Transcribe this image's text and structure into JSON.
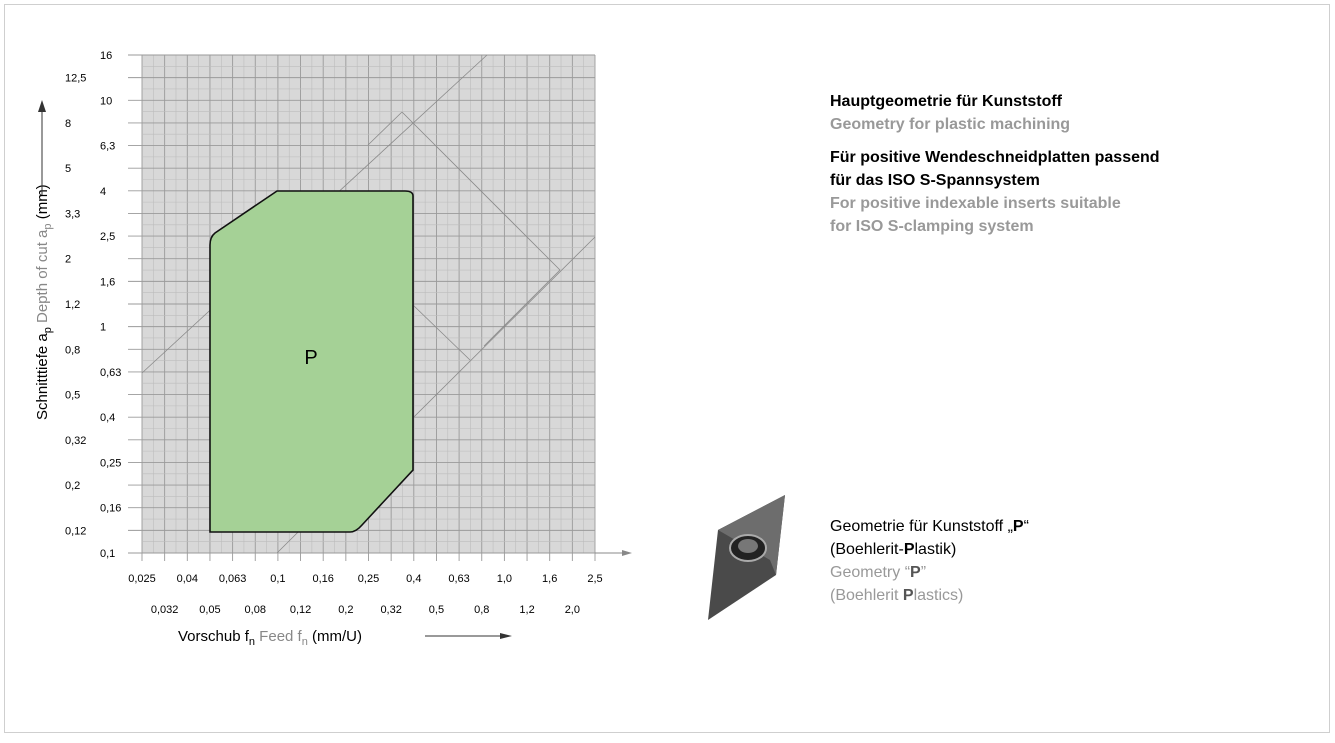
{
  "chart": {
    "y_axis_label": [
      "Schnitttiefe a",
      "p",
      " Depth of cut a",
      "p",
      " (mm)"
    ],
    "x_axis_label": [
      "Vorschub f",
      "n",
      " Feed f",
      "n",
      "  (mm/U)"
    ],
    "y_ticks": [
      "16",
      "12,5",
      "10",
      "8",
      "6,3",
      "5",
      "4",
      "3,3",
      "2,5",
      "2",
      "1,6",
      "1,2",
      "1",
      "0,8",
      "0,63",
      "0,5",
      "0,4",
      "0,32",
      "0,25",
      "0,2",
      "0,16",
      "0,12",
      "0,1"
    ],
    "x_ticks": [
      "0,025",
      "0,032",
      "0,04",
      "0,05",
      "0,063",
      "0,08",
      "0,1",
      "0,12",
      "0,16",
      "0,2",
      "0,25",
      "0,32",
      "0,4",
      "0,5",
      "0,63",
      "0,8",
      "1,0",
      "1,2",
      "1,6",
      "2,0",
      "2,5"
    ],
    "region_label": "P"
  },
  "info": {
    "heading1": "Hauptgeometrie für Kunststoff",
    "heading1_en": "Geometry for plastic machining",
    "heading2": [
      "Für positive Wendeschneidplatten passend",
      "für das ISO S-Spannsystem"
    ],
    "heading2_en": [
      "For positive indexable inserts suitable",
      "for ISO S-clamping system"
    ],
    "insert_de": [
      [
        "Geometrie für Kunststoff „",
        "P",
        "“"
      ],
      [
        "(Boehlerit-",
        "P",
        "lastik)"
      ]
    ],
    "insert_en": [
      [
        "Geometry “",
        "P",
        "”"
      ],
      [
        "(Boehlerit ",
        "P",
        "lastics)"
      ]
    ]
  }
}
